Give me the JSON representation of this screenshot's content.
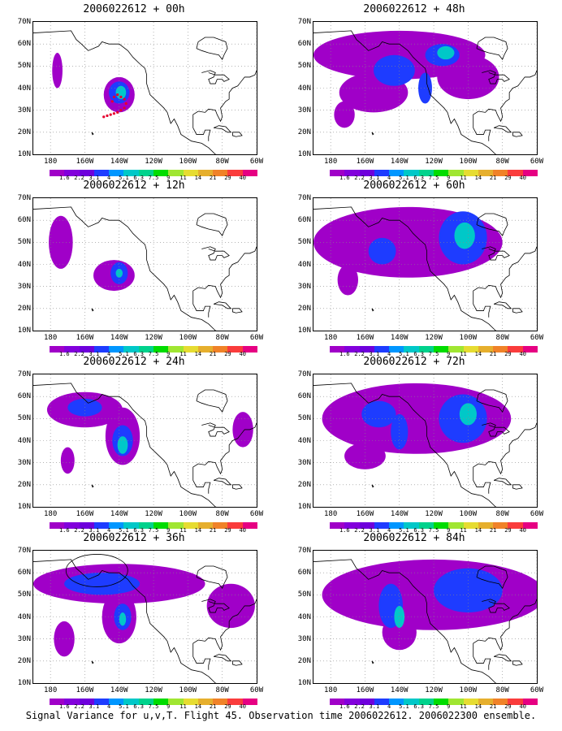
{
  "panels": [
    {
      "title": "2006022612 + 00h",
      "col": 0,
      "row": 0,
      "blobs": [
        {
          "cx": -176,
          "cy": 48,
          "rx": 3,
          "ry": 8,
          "lvl": 0
        },
        {
          "cx": -140,
          "cy": 37,
          "rx": 9,
          "ry": 8,
          "lvl": 0
        },
        {
          "cx": -140,
          "cy": 38,
          "rx": 6,
          "ry": 5,
          "lvl": 2
        },
        {
          "cx": -139,
          "cy": 38,
          "rx": 3,
          "ry": 3,
          "lvl": 4
        }
      ],
      "dots": true,
      "circle": false
    },
    {
      "title": "2006022612 + 48h",
      "col": 1,
      "row": 0,
      "blobs": [
        {
          "cx": -140,
          "cy": 55,
          "rx": 50,
          "ry": 11,
          "lvl": 0
        },
        {
          "cx": -155,
          "cy": 38,
          "rx": 20,
          "ry": 9,
          "lvl": 0
        },
        {
          "cx": -172,
          "cy": 28,
          "rx": 6,
          "ry": 6,
          "lvl": 0
        },
        {
          "cx": -100,
          "cy": 45,
          "rx": 18,
          "ry": 10,
          "lvl": 0
        },
        {
          "cx": -143,
          "cy": 48,
          "rx": 12,
          "ry": 7,
          "lvl": 2
        },
        {
          "cx": -115,
          "cy": 55,
          "rx": 10,
          "ry": 5,
          "lvl": 2
        },
        {
          "cx": -125,
          "cy": 40,
          "rx": 4,
          "ry": 7,
          "lvl": 2
        },
        {
          "cx": -113,
          "cy": 56,
          "rx": 5,
          "ry": 3,
          "lvl": 4
        }
      ],
      "dots": false,
      "circle": false
    },
    {
      "title": "2006022612 + 12h",
      "col": 0,
      "row": 1,
      "blobs": [
        {
          "cx": -174,
          "cy": 50,
          "rx": 7,
          "ry": 12,
          "lvl": 0
        },
        {
          "cx": -143,
          "cy": 35,
          "rx": 12,
          "ry": 7,
          "lvl": 0
        },
        {
          "cx": -140,
          "cy": 36,
          "rx": 5,
          "ry": 5,
          "lvl": 2
        },
        {
          "cx": -140,
          "cy": 36,
          "rx": 2,
          "ry": 2,
          "lvl": 4
        }
      ],
      "dots": false,
      "circle": false
    },
    {
      "title": "2006022612 + 60h",
      "col": 1,
      "row": 1,
      "blobs": [
        {
          "cx": -135,
          "cy": 50,
          "rx": 55,
          "ry": 16,
          "lvl": 0
        },
        {
          "cx": -170,
          "cy": 33,
          "rx": 6,
          "ry": 7,
          "lvl": 0
        },
        {
          "cx": -103,
          "cy": 52,
          "rx": 14,
          "ry": 12,
          "lvl": 2
        },
        {
          "cx": -150,
          "cy": 46,
          "rx": 8,
          "ry": 6,
          "lvl": 2
        },
        {
          "cx": -102,
          "cy": 53,
          "rx": 6,
          "ry": 6,
          "lvl": 4
        }
      ],
      "dots": false,
      "circle": false
    },
    {
      "title": "2006022612 + 24h",
      "col": 0,
      "row": 2,
      "blobs": [
        {
          "cx": -160,
          "cy": 54,
          "rx": 22,
          "ry": 8,
          "lvl": 0
        },
        {
          "cx": -138,
          "cy": 42,
          "rx": 10,
          "ry": 13,
          "lvl": 0
        },
        {
          "cx": -170,
          "cy": 31,
          "rx": 4,
          "ry": 6,
          "lvl": 0
        },
        {
          "cx": -68,
          "cy": 45,
          "rx": 6,
          "ry": 8,
          "lvl": 0
        },
        {
          "cx": -160,
          "cy": 55,
          "rx": 10,
          "ry": 4,
          "lvl": 2
        },
        {
          "cx": -138,
          "cy": 40,
          "rx": 6,
          "ry": 7,
          "lvl": 2
        },
        {
          "cx": -138,
          "cy": 38,
          "rx": 3,
          "ry": 4,
          "lvl": 4
        }
      ],
      "dots": false,
      "circle": false
    },
    {
      "title": "2006022612 + 72h",
      "col": 1,
      "row": 2,
      "blobs": [
        {
          "cx": -130,
          "cy": 50,
          "rx": 55,
          "ry": 16,
          "lvl": 0
        },
        {
          "cx": -160,
          "cy": 33,
          "rx": 12,
          "ry": 6,
          "lvl": 0
        },
        {
          "cx": -103,
          "cy": 50,
          "rx": 14,
          "ry": 11,
          "lvl": 2
        },
        {
          "cx": -152,
          "cy": 52,
          "rx": 10,
          "ry": 6,
          "lvl": 2
        },
        {
          "cx": -140,
          "cy": 44,
          "rx": 5,
          "ry": 8,
          "lvl": 2
        },
        {
          "cx": -100,
          "cy": 52,
          "rx": 5,
          "ry": 5,
          "lvl": 4
        }
      ],
      "dots": false,
      "circle": false
    },
    {
      "title": "2006022612 + 36h",
      "col": 0,
      "row": 3,
      "blobs": [
        {
          "cx": -140,
          "cy": 55,
          "rx": 50,
          "ry": 9,
          "lvl": 0
        },
        {
          "cx": -140,
          "cy": 40,
          "rx": 10,
          "ry": 12,
          "lvl": 0
        },
        {
          "cx": -172,
          "cy": 30,
          "rx": 6,
          "ry": 8,
          "lvl": 0
        },
        {
          "cx": -75,
          "cy": 45,
          "rx": 14,
          "ry": 10,
          "lvl": 0
        },
        {
          "cx": -150,
          "cy": 55,
          "rx": 22,
          "ry": 5,
          "lvl": 2
        },
        {
          "cx": -138,
          "cy": 40,
          "rx": 5,
          "ry": 6,
          "lvl": 2
        },
        {
          "cx": -138,
          "cy": 39,
          "rx": 2,
          "ry": 3,
          "lvl": 4
        }
      ],
      "dots": false,
      "circle": true
    },
    {
      "title": "2006022612 + 84h",
      "col": 1,
      "row": 3,
      "blobs": [
        {
          "cx": -120,
          "cy": 50,
          "rx": 65,
          "ry": 16,
          "lvl": 0
        },
        {
          "cx": -140,
          "cy": 33,
          "rx": 10,
          "ry": 8,
          "lvl": 0
        },
        {
          "cx": -100,
          "cy": 52,
          "rx": 20,
          "ry": 10,
          "lvl": 2
        },
        {
          "cx": -145,
          "cy": 45,
          "rx": 7,
          "ry": 10,
          "lvl": 2
        },
        {
          "cx": -140,
          "cy": 40,
          "rx": 3,
          "ry": 5,
          "lvl": 4
        }
      ],
      "dots": false,
      "circle": false
    }
  ],
  "x_labels": [
    "180",
    "160W",
    "140W",
    "120W",
    "100W",
    "80W",
    "60W"
  ],
  "y_labels": [
    "70N",
    "60N",
    "50N",
    "40N",
    "30N",
    "20N",
    "10N"
  ],
  "colorbar_labels": [
    "1.6",
    "2.2",
    "3.1",
    "4",
    "5.1",
    "6.3",
    "7.5",
    "9",
    "11",
    "14",
    "21",
    "29",
    "40"
  ],
  "colorbar_colors": [
    "#a000c8",
    "#8200dc",
    "#6e00dc",
    "#1e3cff",
    "#0096ff",
    "#00c8c8",
    "#00d28c",
    "#00dc00",
    "#a0e632",
    "#e6dc32",
    "#e6af2d",
    "#f08228",
    "#fa3c3c",
    "#e60082"
  ],
  "fill_colors": {
    "level0": "#a000c8",
    "level1": "#8200dc",
    "level2": "#1e3cff",
    "level3": "#0096ff",
    "level4": "#00c8c8"
  },
  "caption": "Signal Variance for u,v,T. Flight 45. Observation time 2006022612. 2006022300 ensemble."
}
